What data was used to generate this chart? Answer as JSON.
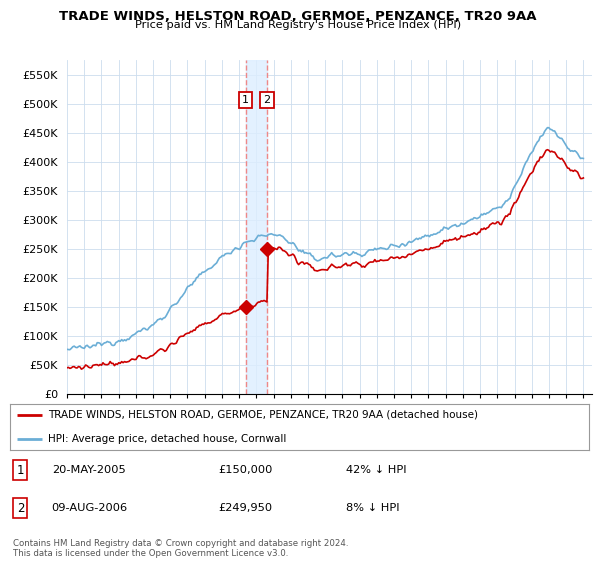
{
  "title": "TRADE WINDS, HELSTON ROAD, GERMOE, PENZANCE, TR20 9AA",
  "subtitle": "Price paid vs. HM Land Registry's House Price Index (HPI)",
  "ylabel_ticks": [
    "£0",
    "£50K",
    "£100K",
    "£150K",
    "£200K",
    "£250K",
    "£300K",
    "£350K",
    "£400K",
    "£450K",
    "£500K",
    "£550K"
  ],
  "ytick_vals": [
    0,
    50000,
    100000,
    150000,
    200000,
    250000,
    300000,
    350000,
    400000,
    450000,
    500000,
    550000
  ],
  "ylim": [
    0,
    575000
  ],
  "xlim_start": 1995.0,
  "xlim_end": 2025.5,
  "sale1_x": 2005.38,
  "sale1_y": 150000,
  "sale2_x": 2006.62,
  "sale2_y": 249950,
  "legend_line1": "TRADE WINDS, HELSTON ROAD, GERMOE, PENZANCE, TR20 9AA (detached house)",
  "legend_line2": "HPI: Average price, detached house, Cornwall",
  "footnote": "Contains HM Land Registry data © Crown copyright and database right 2024.\nThis data is licensed under the Open Government Licence v3.0.",
  "hpi_color": "#6baed6",
  "price_color": "#CC0000",
  "vline_color": "#EE8888",
  "shade_color": "#DDEEFF",
  "background_color": "#FFFFFF",
  "grid_color": "#CCDDEE"
}
